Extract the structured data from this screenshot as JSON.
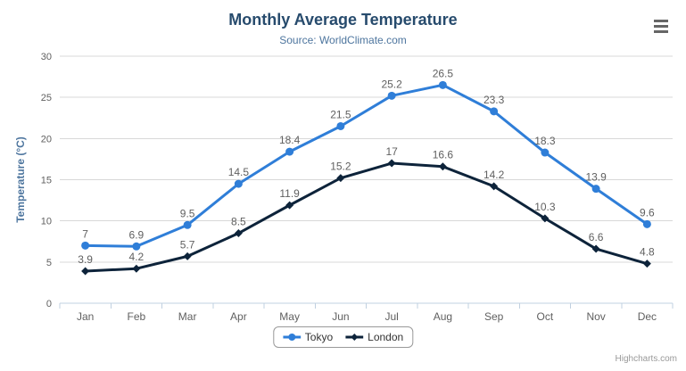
{
  "title": "Monthly Average Temperature",
  "subtitle": "Source: WorldClimate.com",
  "credit": "Highcharts.com",
  "colors": {
    "title": "#274b6d",
    "subtitle": "#4d759e",
    "axis_title": "#4d759e",
    "axis_labels": "#606060",
    "grid": "#d8d8d8",
    "axis_line": "#c0d0e0",
    "data_label": "#606060",
    "legend_border": "#999999",
    "legend_text": "#333333",
    "credit": "#999999",
    "menu_icon": "#666666"
  },
  "chart_data": {
    "type": "line",
    "title": "Monthly Average Temperature",
    "subtitle": "Source: WorldClimate.com",
    "categories": [
      "Jan",
      "Feb",
      "Mar",
      "Apr",
      "May",
      "Jun",
      "Jul",
      "Aug",
      "Sep",
      "Oct",
      "Nov",
      "Dec"
    ],
    "series": [
      {
        "name": "Tokyo",
        "color": "#2f7ed8",
        "marker": "circle",
        "values": [
          7,
          6.9,
          9.5,
          14.5,
          18.4,
          21.5,
          25.2,
          26.5,
          23.3,
          18.3,
          13.9,
          9.6
        ]
      },
      {
        "name": "London",
        "color": "#0d233a",
        "marker": "diamond",
        "values": [
          3.9,
          4.2,
          5.7,
          8.5,
          11.9,
          15.2,
          17,
          16.6,
          14.2,
          10.3,
          6.6,
          4.8
        ]
      }
    ],
    "xlabel": "",
    "ylabel": "Temperature (°C)",
    "ylim": [
      0,
      30
    ],
    "ytick_interval": 5,
    "grid": true,
    "data_labels": true,
    "legend_position": "bottom-center"
  }
}
